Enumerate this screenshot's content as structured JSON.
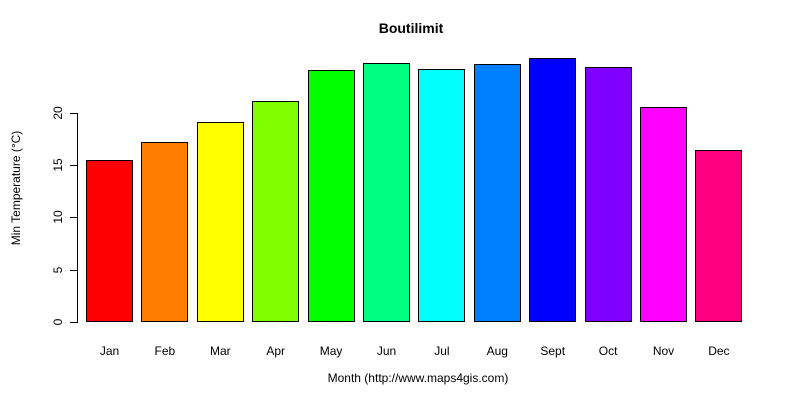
{
  "chart_data": {
    "type": "bar",
    "title": "Boutilimit",
    "xlabel": "Month (http://www.maps4gis.com)",
    "ylabel": "Min Temperature (°C)",
    "categories": [
      "Jan",
      "Feb",
      "Mar",
      "Apr",
      "May",
      "Jun",
      "Jul",
      "Aug",
      "Sept",
      "Oct",
      "Nov",
      "Dec"
    ],
    "values": [
      15.5,
      17.2,
      19.1,
      21.1,
      24.1,
      24.8,
      24.2,
      24.7,
      25.2,
      24.4,
      20.6,
      16.4
    ],
    "bar_colors": [
      "#FF0000",
      "#FF8000",
      "#FFFF00",
      "#80FF00",
      "#00FF00",
      "#00FF80",
      "#00FFFF",
      "#0080FF",
      "#0000FF",
      "#8000FF",
      "#FF00FF",
      "#FF0080"
    ],
    "bar_edge_color": "#000000",
    "yticks": [
      0,
      5,
      10,
      15,
      20
    ],
    "ylim": [
      0,
      25.5
    ],
    "grid": false,
    "legend": "none",
    "axis_color": "#000000",
    "background_color": "#FFFFFF"
  }
}
